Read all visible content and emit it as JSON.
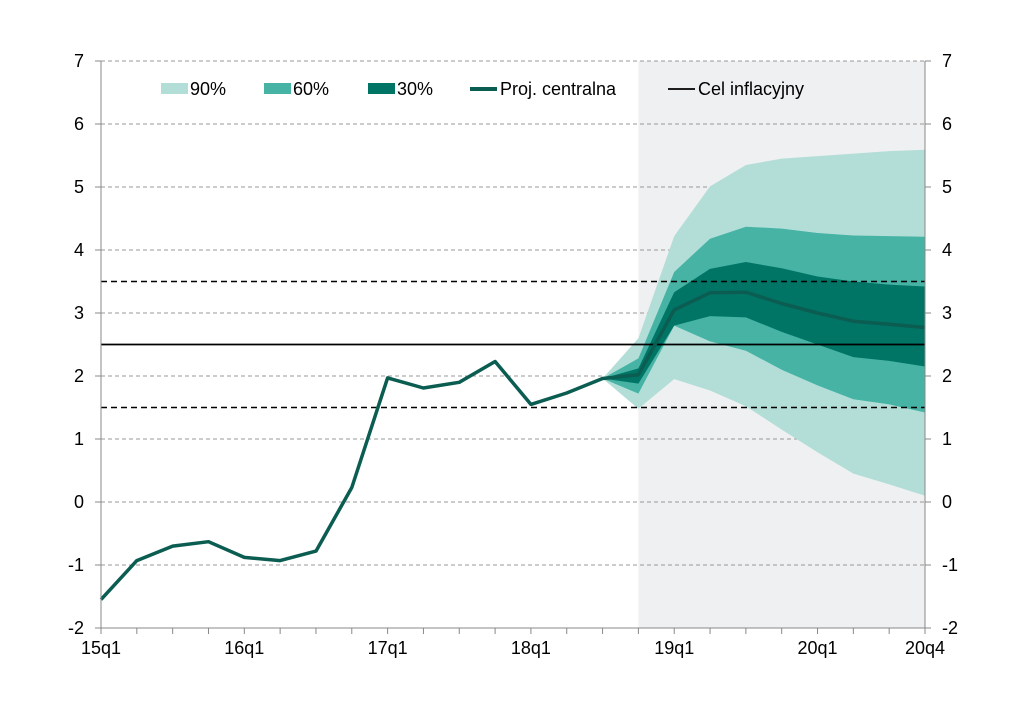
{
  "chart_data": {
    "type": "area",
    "title": "",
    "xlabel": "",
    "ylabel": "",
    "ylim": [
      -2,
      7
    ],
    "yticks": [
      -2,
      -1,
      0,
      1,
      2,
      3,
      4,
      5,
      6,
      7
    ],
    "grid": "horizontal dashed",
    "legend_position": "top",
    "x_tick_labels": [
      "15q1",
      "16q1",
      "17q1",
      "18q1",
      "19q1",
      "20q1",
      "20q4"
    ],
    "x": [
      "15q1",
      "15q2",
      "15q3",
      "15q4",
      "16q1",
      "16q2",
      "16q3",
      "16q4",
      "17q1",
      "17q2",
      "17q3",
      "17q4",
      "18q1",
      "18q2",
      "18q3",
      "18q4",
      "19q1",
      "19q2",
      "19q3",
      "19q4",
      "20q1",
      "20q2",
      "20q3",
      "20q4"
    ],
    "projection_shading_start": "18q4",
    "central_projection": {
      "name": "Proj. centralna",
      "values": [
        -1.55,
        -0.93,
        -0.7,
        -0.63,
        -0.88,
        -0.93,
        -0.78,
        0.23,
        1.97,
        1.81,
        1.9,
        2.23,
        1.55,
        1.73,
        1.96,
        2.02,
        3.05,
        3.32,
        3.33,
        3.15,
        3.0,
        2.87,
        2.82,
        2.77
      ]
    },
    "fan_start_index": 14,
    "bands": [
      {
        "name": "90%",
        "color": "#b3ded8",
        "upper": [
          1.96,
          2.6,
          4.22,
          5.01,
          5.35,
          5.45,
          5.49,
          5.53,
          5.57,
          5.59
        ],
        "lower": [
          1.96,
          1.48,
          1.95,
          1.77,
          1.52,
          1.15,
          0.79,
          0.45,
          0.28,
          0.1
        ]
      },
      {
        "name": "60%",
        "color": "#46b3a5",
        "upper": [
          1.96,
          2.28,
          3.65,
          4.18,
          4.37,
          4.34,
          4.27,
          4.23,
          4.22,
          4.21
        ],
        "lower": [
          1.96,
          1.72,
          2.8,
          2.55,
          2.4,
          2.1,
          1.85,
          1.63,
          1.55,
          1.42
        ]
      },
      {
        "name": "30%",
        "color": "#007566",
        "upper": [
          1.96,
          2.12,
          3.33,
          3.7,
          3.81,
          3.71,
          3.58,
          3.5,
          3.45,
          3.42
        ],
        "lower": [
          1.96,
          1.88,
          2.8,
          2.95,
          2.93,
          2.7,
          2.5,
          2.3,
          2.24,
          2.15
        ]
      }
    ],
    "target": {
      "name": "Cel inflacyjny",
      "value": 2.5,
      "band_lower": 1.5,
      "band_upper": 3.5
    },
    "legend": [
      "90%",
      "60%",
      "30%",
      "Proj. centralna",
      "Cel inflacyjny"
    ],
    "colors": {
      "projection_bg": "#eff0f1",
      "central_line": "#0b5c51",
      "target_line": "#000000",
      "grid": "#999999"
    }
  }
}
